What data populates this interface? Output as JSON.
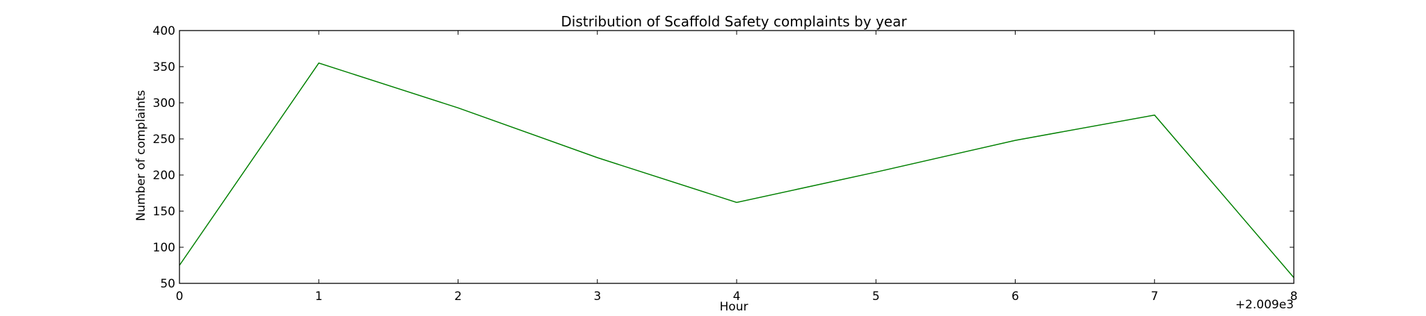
{
  "chart_data": {
    "type": "line",
    "title": "Distribution of  Scaffold Safety complaints by year",
    "xlabel": "Hour",
    "ylabel": "Number of complaints",
    "x_offset_label": "+2.009e3",
    "x_ticks": [
      0,
      1,
      2,
      3,
      4,
      5,
      6,
      7,
      8
    ],
    "y_ticks": [
      50,
      100,
      150,
      200,
      250,
      300,
      350,
      400
    ],
    "xlim": [
      0,
      8
    ],
    "ylim": [
      50,
      400
    ],
    "grid": false,
    "series": [
      {
        "color": "#008000",
        "x": [
          0,
          1,
          2,
          3,
          4,
          5,
          6,
          7,
          8
        ],
        "values": [
          75,
          355,
          293,
          224,
          162,
          204,
          248,
          283,
          58
        ]
      }
    ]
  }
}
